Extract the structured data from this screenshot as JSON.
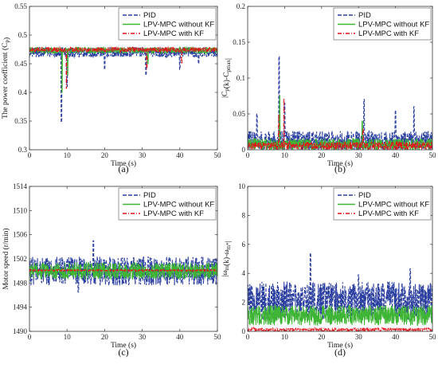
{
  "legend_entries": [
    "PID",
    "LPV-MPC without KF",
    "LPV-MPC with KF"
  ],
  "colors": {
    "PID": "#2b3fa0",
    "LPV-MPC without KF": "#3fb535",
    "LPV-MPC with KF": "#e3141b"
  },
  "chart_data": [
    {
      "id": "a",
      "type": "line",
      "panel_label": "(a)",
      "xlabel": "Time (s)",
      "ylabel": "The power coefficient (C_p)",
      "xlim": [
        0,
        50
      ],
      "ylim": [
        0.3,
        0.55
      ],
      "xticks": [
        0,
        10,
        20,
        30,
        40,
        50
      ],
      "yticks": [
        0.3,
        0.35,
        0.4,
        0.45,
        0.5,
        0.55
      ],
      "ytick_labels": [
        "0.3",
        "0.35",
        "0.4",
        "0.45",
        "0.5",
        "0.55"
      ],
      "legend_position": "top-right",
      "series": [
        {
          "name": "PID",
          "baseline": 0.476,
          "noise": 0.008,
          "spikes": [
            [
              8.5,
              0.348
            ],
            [
              10,
              0.41
            ],
            [
              31,
              0.43
            ],
            [
              20,
              0.44
            ],
            [
              40,
              0.44
            ],
            [
              45,
              0.45
            ]
          ]
        },
        {
          "name": "LPV-MPC without KF",
          "baseline": 0.476,
          "noise": 0.005,
          "spikes": [
            [
              8.7,
              0.4
            ],
            [
              10.2,
              0.43
            ],
            [
              31.5,
              0.45
            ]
          ]
        },
        {
          "name": "LPV-MPC with KF",
          "baseline": 0.477,
          "noise": 0.004,
          "spikes": [
            [
              9.8,
              0.407
            ],
            [
              31.2,
              0.44
            ],
            [
              40.5,
              0.45
            ]
          ]
        }
      ]
    },
    {
      "id": "b",
      "type": "line",
      "panel_label": "(b)",
      "xlabel": "Time (s)",
      "ylabel": "|C_p(k)-C_pmax|",
      "xlim": [
        0,
        50
      ],
      "ylim": [
        0,
        0.2
      ],
      "xticks": [
        0,
        10,
        20,
        30,
        40,
        50
      ],
      "yticks": [
        0,
        0.05,
        0.1,
        0.15,
        0.2
      ],
      "ytick_labels": [
        "0",
        "0.05",
        "0.1",
        "0.15",
        "0.2"
      ],
      "legend_position": "top-right",
      "series": [
        {
          "name": "PID",
          "baseline": 0.008,
          "noise": 0.02,
          "spikes": [
            [
              8.5,
              0.13
            ],
            [
              10,
              0.065
            ],
            [
              31.5,
              0.07
            ],
            [
              2.5,
              0.05
            ],
            [
              40,
              0.055
            ],
            [
              45,
              0.06
            ]
          ]
        },
        {
          "name": "LPV-MPC without KF",
          "baseline": 0.005,
          "noise": 0.012,
          "spikes": [
            [
              8.7,
              0.075
            ],
            [
              31,
              0.04
            ]
          ]
        },
        {
          "name": "LPV-MPC with KF",
          "baseline": 0.004,
          "noise": 0.008,
          "spikes": [
            [
              9.8,
              0.072
            ],
            [
              8.4,
              0.05
            ],
            [
              31.2,
              0.03
            ]
          ]
        }
      ]
    },
    {
      "id": "c",
      "type": "line",
      "panel_label": "(c)",
      "xlabel": "Time (s)",
      "ylabel": "Motor speed (r/min)",
      "xlim": [
        0,
        50
      ],
      "ylim": [
        1490,
        1514
      ],
      "xticks": [
        0,
        10,
        20,
        30,
        40,
        50
      ],
      "yticks": [
        1490,
        1494,
        1498,
        1502,
        1506,
        1510,
        1514
      ],
      "ytick_labels": [
        "1490",
        "1494",
        "1498",
        "1502",
        "1506",
        "1510",
        "1514"
      ],
      "legend_position": "top-right",
      "series": [
        {
          "name": "PID",
          "baseline": 1500,
          "noise": 2.4,
          "spikes": [
            [
              17,
              1505
            ],
            [
              13,
              1496.5
            ]
          ]
        },
        {
          "name": "LPV-MPC without KF",
          "baseline": 1500,
          "noise": 1.4,
          "spikes": []
        },
        {
          "name": "LPV-MPC with KF",
          "baseline": 1500.1,
          "noise": 0.12,
          "spikes": []
        }
      ]
    },
    {
      "id": "d",
      "type": "line",
      "panel_label": "(d)",
      "xlabel": "Time (s)",
      "ylabel": "|ω_m(k)-ω_m*|",
      "xlim": [
        0,
        50
      ],
      "ylim": [
        0,
        10
      ],
      "xticks": [
        0,
        10,
        20,
        30,
        40,
        50
      ],
      "yticks": [
        0,
        2,
        4,
        6,
        8,
        10
      ],
      "ytick_labels": [
        "0",
        "2",
        "4",
        "6",
        "8",
        "10"
      ],
      "legend_position": "top-right",
      "series": [
        {
          "name": "PID",
          "baseline": 1.7,
          "noise": 1.9,
          "spikes": [
            [
              17,
              5.4
            ],
            [
              44,
              4.3
            ],
            [
              30,
              3.9
            ]
          ]
        },
        {
          "name": "LPV-MPC without KF",
          "baseline": 0.9,
          "noise": 1.0,
          "spikes": []
        },
        {
          "name": "LPV-MPC with KF",
          "baseline": 0.08,
          "noise": 0.18,
          "spikes": []
        }
      ]
    }
  ]
}
